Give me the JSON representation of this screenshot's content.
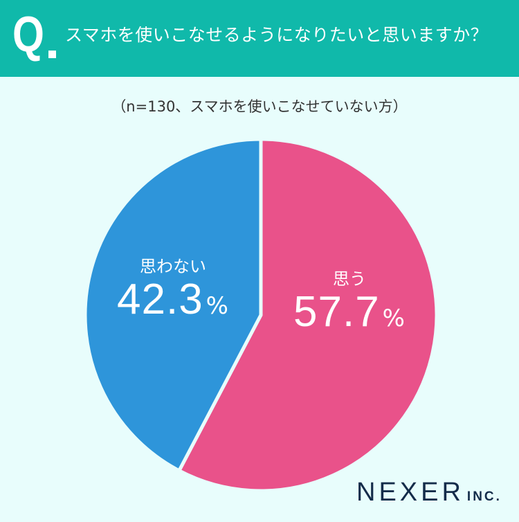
{
  "header": {
    "q_mark": "Q",
    "question": "スマホを使いこなせるようになりたいと思いますか？",
    "background_color": "#10b9aa"
  },
  "sample_note": "（n=130、スマホを使いこなせていない方）",
  "chart_data": {
    "type": "pie",
    "title": "スマホを使いこなせるようになりたいと思いますか？",
    "subtitle": "（n=130、スマホを使いこなせていない方）",
    "categories": [
      "思う",
      "思わない"
    ],
    "values": [
      57.7,
      42.3
    ],
    "unit": "%",
    "colors": [
      "#e9528a",
      "#2e95da"
    ],
    "start_angle": "12 o'clock, clockwise",
    "legend": "none (labels inside slices)"
  },
  "labels": {
    "yes": {
      "category": "思う",
      "value": "57.7",
      "unit": "%"
    },
    "no": {
      "category": "思わない",
      "value": "42.3",
      "unit": "%"
    }
  },
  "logo": {
    "main": "NEXER",
    "sub": "INC."
  }
}
